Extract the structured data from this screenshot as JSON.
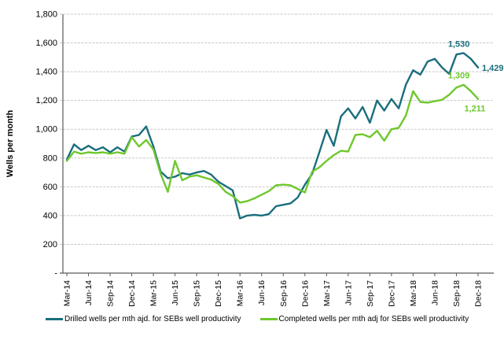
{
  "chart_data": {
    "type": "line",
    "title": "",
    "xlabel": "",
    "ylabel": "Wells per month",
    "ylim": [
      0,
      1800
    ],
    "y_tick_step": 200,
    "y_tick_labels": [
      "-",
      "200",
      "400",
      "600",
      "800",
      "1,000",
      "1,200",
      "1,400",
      "1,600",
      "1,800"
    ],
    "x_tick_every": 3,
    "grid": "horizontal-dashed",
    "legend_position": "bottom",
    "axis_color": "#595959",
    "grid_color": "#c7c7c7",
    "categories": [
      "Mar-14",
      "Apr-14",
      "May-14",
      "Jun-14",
      "Jul-14",
      "Aug-14",
      "Sep-14",
      "Oct-14",
      "Nov-14",
      "Dec-14",
      "Jan-15",
      "Feb-15",
      "Mar-15",
      "Apr-15",
      "May-15",
      "Jun-15",
      "Jul-15",
      "Aug-15",
      "Sep-15",
      "Oct-15",
      "Nov-15",
      "Dec-15",
      "Jan-16",
      "Feb-16",
      "Mar-16",
      "Apr-16",
      "May-16",
      "Jun-16",
      "Jul-16",
      "Aug-16",
      "Sep-16",
      "Oct-16",
      "Nov-16",
      "Dec-16",
      "Jan-17",
      "Feb-17",
      "Mar-17",
      "Apr-17",
      "May-17",
      "Jun-17",
      "Jul-17",
      "Aug-17",
      "Sep-17",
      "Oct-17",
      "Nov-17",
      "Dec-17",
      "Jan-18",
      "Feb-18",
      "Mar-18",
      "Apr-18",
      "May-18",
      "Jun-18",
      "Jul-18",
      "Aug-18",
      "Sep-18",
      "Oct-18",
      "Nov-18",
      "Dec-18"
    ],
    "series": [
      {
        "key": "drilled",
        "name": "Drilled wells per mth ajd. for SEBs well productivity",
        "color": "#1A6E7D",
        "values": [
          790,
          895,
          855,
          885,
          855,
          875,
          840,
          875,
          845,
          950,
          960,
          1020,
          880,
          705,
          660,
          670,
          695,
          685,
          700,
          710,
          685,
          635,
          605,
          575,
          380,
          400,
          405,
          400,
          410,
          465,
          475,
          485,
          525,
          615,
          690,
          840,
          995,
          885,
          1090,
          1145,
          1075,
          1155,
          1045,
          1200,
          1130,
          1210,
          1145,
          1310,
          1410,
          1380,
          1470,
          1490,
          1430,
          1385,
          1520,
          1530,
          1490,
          1429
        ]
      },
      {
        "key": "completed",
        "name": "Completed wells per mth adj for SEBs well productivity",
        "color": "#6EC82D",
        "values": [
          780,
          845,
          830,
          840,
          835,
          840,
          830,
          840,
          830,
          945,
          880,
          925,
          860,
          690,
          565,
          780,
          645,
          670,
          680,
          665,
          650,
          620,
          565,
          535,
          490,
          500,
          520,
          545,
          570,
          610,
          615,
          610,
          585,
          560,
          705,
          735,
          780,
          820,
          850,
          845,
          960,
          965,
          945,
          990,
          920,
          1000,
          1010,
          1095,
          1265,
          1190,
          1185,
          1195,
          1205,
          1240,
          1290,
          1309,
          1265,
          1211
        ]
      }
    ],
    "annotations": [
      {
        "series": 0,
        "index": 55,
        "text": "1,530",
        "placement": "above"
      },
      {
        "series": 0,
        "index": 57,
        "text": "1,429",
        "placement": "right"
      },
      {
        "series": 1,
        "index": 55,
        "text": "1,309",
        "placement": "above"
      },
      {
        "series": 1,
        "index": 57,
        "text": "1,211",
        "placement": "below"
      }
    ]
  }
}
